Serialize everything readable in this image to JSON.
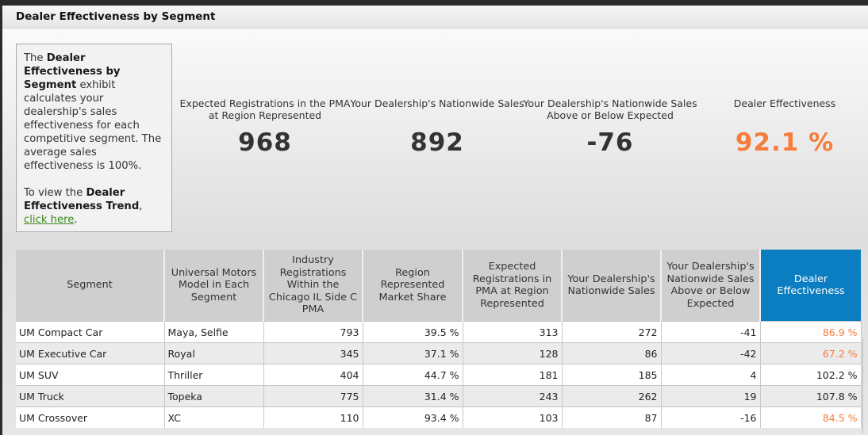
{
  "panel": {
    "title": "Dealer Effectiveness by Segment"
  },
  "intro": {
    "t1": "The ",
    "b1": "Dealer Effectiveness by Segment",
    "t2": " exhibit calculates your dealership's sales effectiveness for each competitive segment. The average sales effectiveness is 100%.",
    "t3": "To view the ",
    "b2": "Dealer Effectiveness Trend",
    "t4": ", ",
    "link": "click here",
    "t5": "."
  },
  "metrics": [
    {
      "label": "Expected Registrations in the PMA at Region Represented",
      "value": "968"
    },
    {
      "label": "Your Dealership's Nationwide Sales",
      "value": "892"
    },
    {
      "label": "Your Dealership's Nationwide Sales Above or Below Expected",
      "value": "-76"
    },
    {
      "label": "Dealer Effectiveness",
      "value": "92.1 %"
    }
  ],
  "colors": {
    "accent": "#f57c3a",
    "header_highlight": "#0b7dc1"
  },
  "table": {
    "headers": [
      "Segment",
      "Universal Motors Model in Each Segment",
      "Industry Registrations Within the Chicago IL Side C PMA",
      "Region Represented Market Share",
      "Expected Registrations in PMA at Region Represented",
      "Your Dealership's Nationwide Sales",
      "Your Dealership's Nationwide Sales Above or Below Expected",
      "Dealer Effectiveness"
    ],
    "rows": [
      [
        "UM Compact Car",
        "Maya, Selfie",
        "793",
        "39.5 %",
        "313",
        "272",
        "-41",
        "86.9 %"
      ],
      [
        "UM Executive Car",
        "Royal",
        "345",
        "37.1 %",
        "128",
        "86",
        "-42",
        "67.2 %"
      ],
      [
        "UM SUV",
        "Thriller",
        "404",
        "44.7 %",
        "181",
        "185",
        "4",
        "102.2 %"
      ],
      [
        "UM Truck",
        "Topeka",
        "775",
        "31.4 %",
        "243",
        "262",
        "19",
        "107.8 %"
      ],
      [
        "UM Crossover",
        "XC",
        "110",
        "93.4 %",
        "103",
        "87",
        "-16",
        "84.5 %"
      ]
    ]
  }
}
